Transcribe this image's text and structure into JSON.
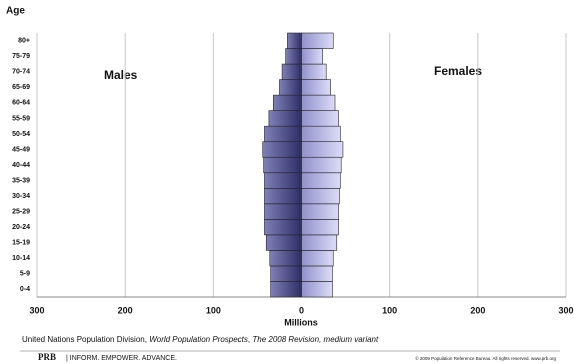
{
  "chart_data": {
    "type": "pyramid",
    "y_label": "Age",
    "x_label": "Millions",
    "categories": [
      "0-4",
      "5-9",
      "10-14",
      "15-19",
      "20-24",
      "25-29",
      "30-34",
      "35-39",
      "40-44",
      "45-49",
      "50-54",
      "55-59",
      "60-64",
      "65-69",
      "70-74",
      "75-79",
      "80+"
    ],
    "series": [
      {
        "name": "Males",
        "color": "#4d4d8c",
        "values": [
          -35,
          -35,
          -36,
          -40,
          -42,
          -42,
          -42,
          -42,
          -43,
          -44,
          -42,
          -37,
          -32,
          -25,
          -22,
          -18,
          -16
        ]
      },
      {
        "name": "Females",
        "color": "#b4b4e6",
        "values": [
          35,
          35,
          36,
          40,
          42,
          42,
          43,
          44,
          45,
          47,
          44,
          42,
          38,
          33,
          28,
          24,
          36
        ]
      }
    ],
    "xlim": [
      -300,
      300
    ],
    "xticks": [
      {
        "value": -300,
        "label": "300"
      },
      {
        "value": -200,
        "label": "200"
      },
      {
        "value": -100,
        "label": "100"
      },
      0,
      100,
      200,
      300
    ],
    "grid": true,
    "source": [
      "United Nations Population Division, ",
      "World Population Prospects",
      ", ",
      "The 2008 Revision",
      ", medium variant"
    ],
    "footer": {
      "logo": "PRB",
      "tagline": "| INFORM. EMPOWER. ADVANCE.",
      "copyright": "© 2009 Population Reference Bureau. All rights reserved. www.prb.org"
    }
  }
}
